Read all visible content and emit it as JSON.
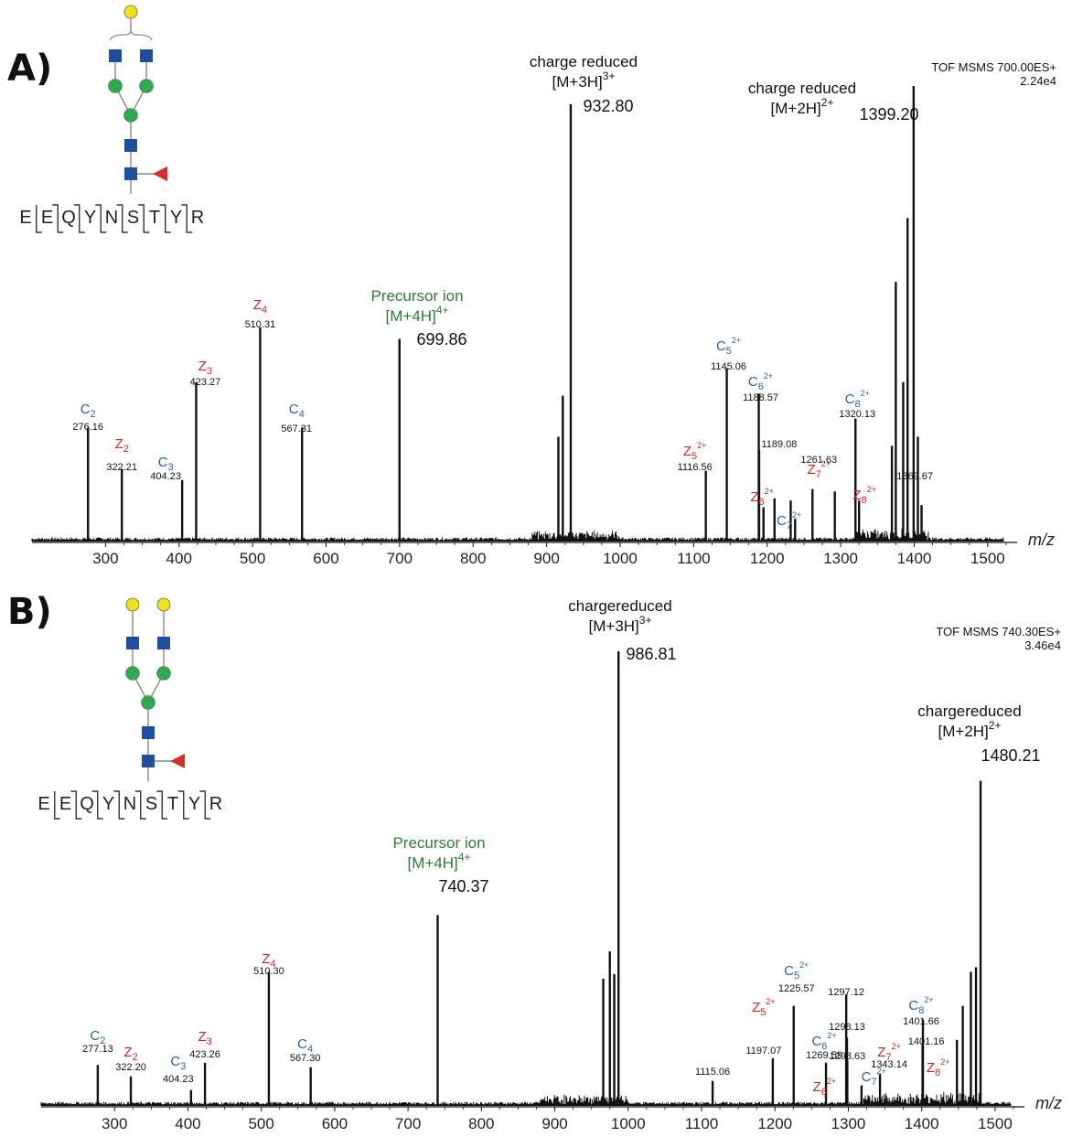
{
  "chart_data": [
    {
      "type": "bar",
      "panel_label": "A)",
      "instrument": "TOF MSMS 700.00ES+",
      "intensity": "2.24e4",
      "xlabel": "m/z",
      "xlim": [
        200,
        1540
      ],
      "x_ticks": [
        300,
        400,
        500,
        600,
        700,
        800,
        900,
        1000,
        1100,
        1200,
        1300,
        1400,
        1500
      ],
      "peptide_sequence": [
        "E",
        "E",
        "Q",
        "Y",
        "N",
        "S",
        "T",
        "Y",
        "R"
      ],
      "glycosylated_residue": "N",
      "glycan": {
        "top_galactose_count": 1,
        "terminal_galnac_count": 2,
        "fucose": true
      },
      "peaks": [
        {
          "mz": 276.16,
          "rel": 25.0
        },
        {
          "mz": 322.21,
          "rel": 16.0
        },
        {
          "mz": 404.23,
          "rel": 13.5
        },
        {
          "mz": 423.27,
          "rel": 35.0
        },
        {
          "mz": 510.31,
          "rel": 47.0
        },
        {
          "mz": 567.31,
          "rel": 25.0
        },
        {
          "mz": 699.86,
          "rel": 44.5
        },
        {
          "mz": 916.0,
          "rel": 23.0
        },
        {
          "mz": 922.0,
          "rel": 32.0
        },
        {
          "mz": 932.8,
          "rel": 96.0
        },
        {
          "mz": 1116.56,
          "rel": 15.5
        },
        {
          "mz": 1145.06,
          "rel": 38.0
        },
        {
          "mz": 1188.57,
          "rel": 32.5
        },
        {
          "mz": 1189.08,
          "rel": 20.0
        },
        {
          "mz": 1195.0,
          "rel": 7.5
        },
        {
          "mz": 1210.0,
          "rel": 9.5
        },
        {
          "mz": 1232.0,
          "rel": 9.0
        },
        {
          "mz": 1238.0,
          "rel": 5.0
        },
        {
          "mz": 1261.63,
          "rel": 11.5
        },
        {
          "mz": 1292.0,
          "rel": 11.0
        },
        {
          "mz": 1320.13,
          "rel": 27.0
        },
        {
          "mz": 1325.0,
          "rel": 9.0
        },
        {
          "mz": 1369.67,
          "rel": 21.0
        },
        {
          "mz": 1375.0,
          "rel": 57.0
        },
        {
          "mz": 1385.0,
          "rel": 35.0
        },
        {
          "mz": 1391.0,
          "rel": 71.0
        },
        {
          "mz": 1399.2,
          "rel": 100.0
        },
        {
          "mz": 1405.0,
          "rel": 23.0
        },
        {
          "mz": 1410.0,
          "rel": 8.0
        }
      ],
      "annotations": [
        {
          "text": "charge reduced",
          "sub": "[M+3H]3+",
          "value": "932.80"
        },
        {
          "text": "charge reduced",
          "sub": "[M+2H]2+",
          "value": "1399.20"
        },
        {
          "text": "Precursor ion",
          "sub": "[M+4H]4+",
          "value": "699.86"
        }
      ],
      "ions": [
        {
          "type": "c",
          "label": "C2",
          "value": "276.16"
        },
        {
          "type": "z",
          "label": "Z2",
          "value": "322.21"
        },
        {
          "type": "c",
          "label": "C3",
          "value": "404.23"
        },
        {
          "type": "z",
          "label": "Z3",
          "value": "423.27"
        },
        {
          "type": "z",
          "label": "Z4",
          "value": "510.31"
        },
        {
          "type": "c",
          "label": "C4",
          "value": "567.31"
        },
        {
          "type": "z",
          "label": "Z5 2+",
          "value": "1116.56"
        },
        {
          "type": "c",
          "label": "C5 2+",
          "value": "1145.06"
        },
        {
          "type": "c",
          "label": "C6 2+",
          "value": "1188.57"
        },
        {
          "type": "plain",
          "label": "",
          "value": "1189.08"
        },
        {
          "type": "z",
          "label": "Z6 2+",
          "value": ""
        },
        {
          "type": "c",
          "label": "C7 2+",
          "value": ""
        },
        {
          "type": "z",
          "label": "Z7 2+",
          "value": "1261.63"
        },
        {
          "type": "c",
          "label": "C8 2+",
          "value": "1320.13"
        },
        {
          "type": "plain",
          "label": "",
          "value": "1369.67"
        },
        {
          "type": "z",
          "label": "Z8 2+",
          "value": ""
        }
      ]
    },
    {
      "type": "bar",
      "panel_label": "B)",
      "instrument": "TOF MSMS 740.30ES+",
      "intensity": "3.46e4",
      "xlabel": "m/z",
      "xlim": [
        200,
        1540
      ],
      "x_ticks": [
        300,
        400,
        500,
        600,
        700,
        800,
        900,
        1000,
        1100,
        1200,
        1300,
        1400,
        1500
      ],
      "peptide_sequence": [
        "E",
        "E",
        "Q",
        "Y",
        "N",
        "S",
        "T",
        "Y",
        "R"
      ],
      "glycosylated_residue": "N",
      "glycan": {
        "top_galactose_count": 2,
        "terminal_galnac_count": 2,
        "fucose": true
      },
      "peaks": [
        {
          "mz": 277.13,
          "rel": 9.0
        },
        {
          "mz": 322.2,
          "rel": 6.5
        },
        {
          "mz": 404.23,
          "rel": 3.5
        },
        {
          "mz": 423.26,
          "rel": 9.5
        },
        {
          "mz": 510.3,
          "rel": 29.5
        },
        {
          "mz": 567.3,
          "rel": 8.5
        },
        {
          "mz": 740.37,
          "rel": 42.0
        },
        {
          "mz": 966.0,
          "rel": 28.0
        },
        {
          "mz": 975.0,
          "rel": 34.0
        },
        {
          "mz": 981.0,
          "rel": 29.0
        },
        {
          "mz": 986.81,
          "rel": 100.0
        },
        {
          "mz": 1115.06,
          "rel": 5.5
        },
        {
          "mz": 1197.07,
          "rel": 10.5
        },
        {
          "mz": 1225.57,
          "rel": 22.0
        },
        {
          "mz": 1269.59,
          "rel": 9.5
        },
        {
          "mz": 1297.12,
          "rel": 24.5
        },
        {
          "mz": 1298.13,
          "rel": 15.0
        },
        {
          "mz": 1298.63,
          "rel": 10.0
        },
        {
          "mz": 1318.0,
          "rel": 4.5
        },
        {
          "mz": 1343.14,
          "rel": 7.0
        },
        {
          "mz": 1401.16,
          "rel": 13.5
        },
        {
          "mz": 1401.66,
          "rel": 19.0
        },
        {
          "mz": 1448.0,
          "rel": 14.5
        },
        {
          "mz": 1456.0,
          "rel": 22.0
        },
        {
          "mz": 1467.0,
          "rel": 29.5
        },
        {
          "mz": 1474.0,
          "rel": 30.5
        },
        {
          "mz": 1480.21,
          "rel": 71.5
        }
      ],
      "annotations": [
        {
          "text": "chargereduced",
          "sub": "[M+3H]3+",
          "value": "986.81"
        },
        {
          "text": "chargereduced",
          "sub": "[M+2H]2+",
          "value": "1480.21"
        },
        {
          "text": "Precursor ion",
          "sub": "[M+4H]4+",
          "value": "740.37"
        }
      ],
      "ions": [
        {
          "type": "c",
          "label": "C2",
          "value": "277.13"
        },
        {
          "type": "z",
          "label": "Z2",
          "value": "322.20"
        },
        {
          "type": "c",
          "label": "C3",
          "value": "404.23"
        },
        {
          "type": "z",
          "label": "Z3",
          "value": "423.26"
        },
        {
          "type": "z",
          "label": "Z4",
          "value": "510.30"
        },
        {
          "type": "c",
          "label": "C4",
          "value": "567.30"
        },
        {
          "type": "plain",
          "label": "",
          "value": "1115.06"
        },
        {
          "type": "z",
          "label": "Z5 2+",
          "value": "1197.07"
        },
        {
          "type": "c",
          "label": "C5 2+",
          "value": "1225.57"
        },
        {
          "type": "c",
          "label": "C6 2+",
          "value": "1269.59"
        },
        {
          "type": "plain",
          "label": "",
          "value": "1297.12"
        },
        {
          "type": "plain",
          "label": "",
          "value": "1298.13"
        },
        {
          "type": "plain",
          "label": "",
          "value": "1298.63"
        },
        {
          "type": "z",
          "label": "Z6 2+",
          "value": ""
        },
        {
          "type": "c",
          "label": "C7 2+",
          "value": ""
        },
        {
          "type": "z",
          "label": "Z7 2+",
          "value": "1343.14"
        },
        {
          "type": "c",
          "label": "C8 2+",
          "value": "1401.66"
        },
        {
          "type": "plain",
          "label": "",
          "value": "1401.16"
        },
        {
          "type": "z",
          "label": "Z8 2+",
          "value": ""
        }
      ]
    }
  ],
  "colors": {
    "c_ion": "#2f5f9e",
    "z_ion": "#c62828",
    "precursor": "#2e7d32",
    "glcnac": "#1f4e9c",
    "mannose": "#2fa84f",
    "galactose": "#f2e21b",
    "fucose": "#d32f2f",
    "spectrum": "#111111"
  }
}
